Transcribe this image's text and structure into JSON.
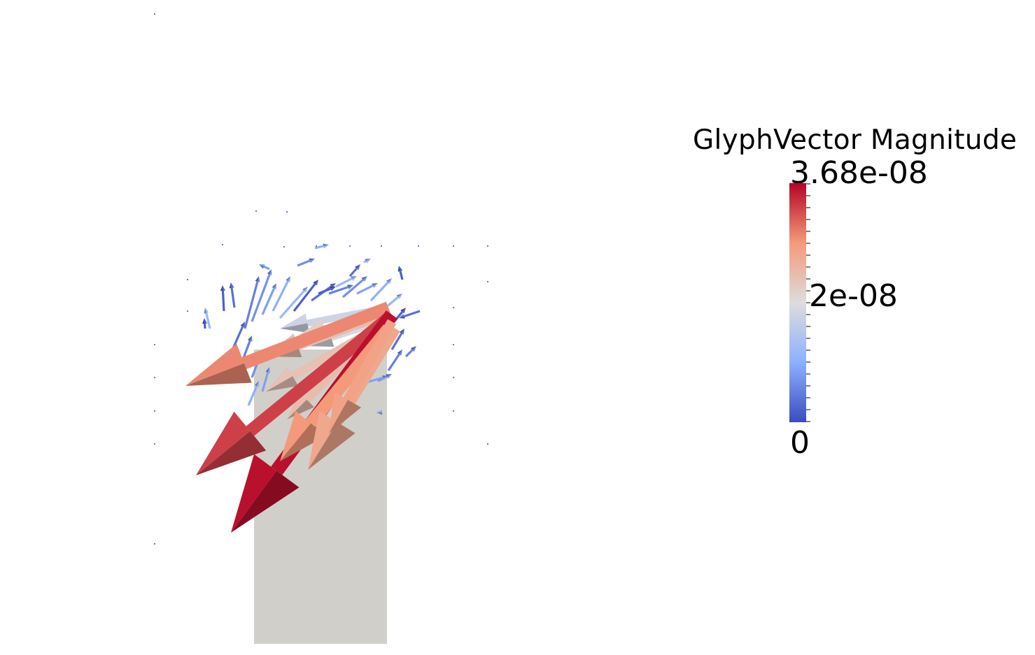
{
  "legend": {
    "title": "GlyphVector Magnitude",
    "max_label": "3.68e-08",
    "mid_label": "2e-08",
    "min_label": "0",
    "range": [
      0,
      3.68e-08
    ],
    "colormap": {
      "name": "Cool to Warm",
      "low": "#3b4cc0",
      "mid": "#dddcdc",
      "high": "#b40426"
    }
  },
  "scene": {
    "background": "#ffffff",
    "surface_color": "#d1cfca",
    "glyph_type": "arrow"
  }
}
